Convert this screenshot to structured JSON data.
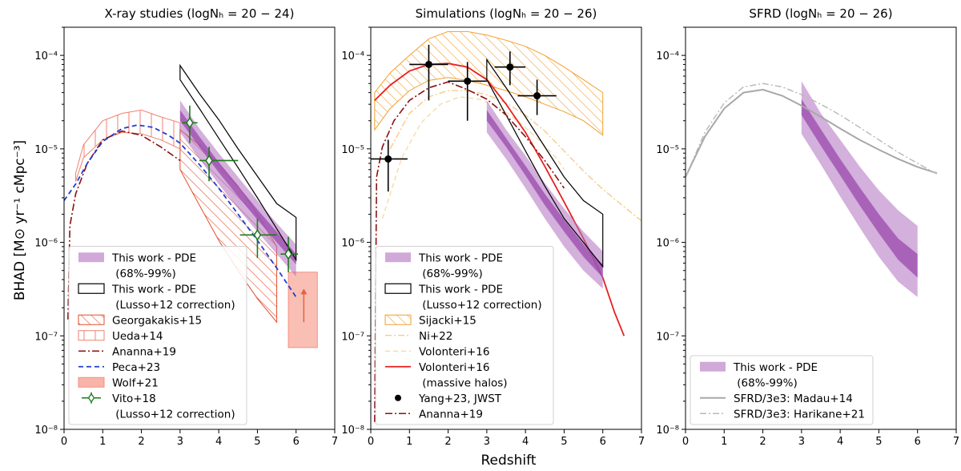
{
  "chart_data": {
    "type": "line",
    "xlabel": "Redshift",
    "ylabel": "BHAD  [M⊙ yr⁻¹ cMpc⁻³]",
    "xlim": [
      0,
      7
    ],
    "ylim": [
      1e-08,
      0.0002
    ],
    "yscale": "log",
    "xticks": [
      "0",
      "1",
      "2",
      "3",
      "4",
      "5",
      "6",
      "7"
    ],
    "yticks": [
      {
        "value": 1e-08,
        "label": "10⁻⁸"
      },
      {
        "value": 1e-07,
        "label": "10⁻⁷"
      },
      {
        "value": 1e-06,
        "label": "10⁻⁶"
      },
      {
        "value": 1e-05,
        "label": "10⁻⁵"
      },
      {
        "value": 0.0001,
        "label": "10⁻⁴"
      }
    ],
    "panels": [
      {
        "title": "X-ray studies (logNₕ = 20 − 24)",
        "series": [
          {
            "name": "Ueda+14",
            "kind": "hatched-band",
            "color": "#f08070",
            "x": [
              0.3,
              0.5,
              1.0,
              1.5,
              2.0,
              2.5,
              3.0
            ],
            "lower": [
              4.5e-06,
              8e-06,
              1.25e-05,
              1.5e-05,
              1.45e-05,
              1.25e-05,
              1e-05
            ],
            "upper": [
              5.5e-06,
              1.1e-05,
              2e-05,
              2.4e-05,
              2.6e-05,
              2.2e-05,
              1.9e-05
            ]
          },
          {
            "name": "Georgakakis+15",
            "kind": "diag-hatched-band",
            "color": "#e05030",
            "x": [
              3.0,
              3.5,
              4.0,
              4.5,
              5.0,
              5.5
            ],
            "lower": [
              6e-06,
              2.5e-06,
              1.05e-06,
              5e-07,
              2.5e-07,
              1.4e-07
            ],
            "upper": [
              1.6e-05,
              1.1e-05,
              7e-06,
              4e-06,
              2e-06,
              9e-07
            ]
          },
          {
            "name": "Wolf+21",
            "kind": "box",
            "color": "#f8b4a8",
            "x0": 5.8,
            "x1": 6.55,
            "y0": 7.5e-08,
            "y1": 4.8e-07,
            "arrow_x": 6.2,
            "arrow_y0": 1.4e-07,
            "arrow_y1": 3.2e-07
          },
          {
            "name": "This work - PDE (68%-99%)",
            "kind": "band",
            "color": "#b070c0",
            "x": [
              3.0,
              3.5,
              4.0,
              4.5,
              5.0,
              5.5,
              6.0
            ],
            "lower99": [
              1.5e-05,
              7.8e-06,
              4.2e-06,
              2.3e-06,
              1.3e-06,
              7.5e-07,
              4.3e-07
            ],
            "upper99": [
              3.3e-05,
              1.65e-05,
              9e-06,
              5e-06,
              2.8e-06,
              1.6e-06,
              9.5e-07
            ],
            "lower68": [
              2e-05,
              1.05e-05,
              5.6e-06,
              3.1e-06,
              1.75e-06,
              1e-06,
              5.8e-07
            ],
            "upper68": [
              2.6e-05,
              1.35e-05,
              7.2e-06,
              4e-06,
              2.25e-06,
              1.3e-06,
              7.5e-07
            ]
          },
          {
            "name": "This work - PDE (Lusso+12 correction)",
            "kind": "outline",
            "color": "#000000",
            "x": [
              3.0,
              3.5,
              4.0,
              4.5,
              5.0,
              5.5,
              6.0
            ],
            "lower": [
              5.5e-05,
              2.7e-05,
              1.3e-05,
              6.3e-06,
              3e-06,
              1.4e-06,
              6.5e-07
            ],
            "upper": [
              7.8e-05,
              3.9e-05,
              2.05e-05,
              1e-05,
              5.1e-06,
              2.6e-06,
              1.85e-06
            ]
          },
          {
            "name": "Ananna+19",
            "kind": "dashdot",
            "color": "#8b1010",
            "x": [
              0.1,
              0.15,
              0.3,
              0.6,
              1.0,
              1.5,
              2.0,
              2.5,
              3.0
            ],
            "y": [
              1.5e-07,
              1.5e-06,
              3.3e-06,
              7e-06,
              1.25e-05,
              1.55e-05,
              1.4e-05,
              1.05e-05,
              7.5e-06
            ]
          },
          {
            "name": "Peca+23",
            "kind": "dashed",
            "color": "#1f3fd0",
            "x": [
              0,
              0.3,
              0.6,
              1.0,
              1.5,
              1.9,
              2.3,
              2.7,
              3.0,
              3.5,
              4.0,
              4.5,
              5.0,
              5.5,
              6.0
            ],
            "y": [
              2.8e-06,
              4.2e-06,
              7e-06,
              1.2e-05,
              1.65e-05,
              1.8e-05,
              1.7e-05,
              1.4e-05,
              1.15e-05,
              6.8e-06,
              3.8e-06,
              2e-06,
              1.05e-06,
              5.3e-07,
              2.6e-07
            ]
          },
          {
            "name": "Vito+18 (Lusso+12 correction)",
            "kind": "errorbar",
            "color": "#1a7a1a",
            "points": [
              {
                "x": 3.25,
                "y": 1.9e-05,
                "xlo": 3.05,
                "xhi": 3.45,
                "ylo": 1.15e-05,
                "yhi": 2.9e-05
              },
              {
                "x": 3.75,
                "y": 7.5e-06,
                "xlo": 3.5,
                "xhi": 4.5,
                "ylo": 4.5e-06,
                "yhi": 1.05e-05
              },
              {
                "x": 5.0,
                "y": 1.2e-06,
                "xlo": 4.55,
                "xhi": 5.5,
                "ylo": 6.8e-07,
                "yhi": 1.8e-06
              },
              {
                "x": 5.8,
                "y": 7.5e-07,
                "xlo": 5.6,
                "xhi": 6.05,
                "ylo": 4.8e-07,
                "yhi": 1.15e-06
              }
            ]
          }
        ],
        "legend": [
          {
            "kind": "band",
            "text": [
              "This work - PDE",
              " (68%-99%)"
            ]
          },
          {
            "kind": "outline",
            "text": [
              "This work - PDE",
              " (Lusso+12 correction)"
            ]
          },
          {
            "kind": "diag-hatched-band",
            "text": [
              "Georgakakis+15"
            ]
          },
          {
            "kind": "hatched-band",
            "text": [
              "Ueda+14"
            ]
          },
          {
            "kind": "dashdot",
            "text": [
              "Ananna+19"
            ]
          },
          {
            "kind": "dashed",
            "text": [
              "Peca+23"
            ]
          },
          {
            "kind": "box",
            "text": [
              "Wolf+21"
            ]
          },
          {
            "kind": "errorbar",
            "text": [
              "Vito+18",
              " (Lusso+12 correction)"
            ]
          }
        ]
      },
      {
        "title": "Simulations (logNₕ = 20 − 26)",
        "series": [
          {
            "name": "Sijacki+15",
            "kind": "orange-hatched-band",
            "color": "#f0a030",
            "x": [
              0.1,
              0.5,
              1.0,
              1.5,
              2.0,
              2.5,
              3.0,
              3.5,
              4.0,
              4.5,
              5.0,
              5.5,
              6.0
            ],
            "lower": [
              1.6e-05,
              2.7e-05,
              4.2e-05,
              5.4e-05,
              5.8e-05,
              5.4e-05,
              4.8e-05,
              4.2e-05,
              3.6e-05,
              3e-05,
              2.5e-05,
              2e-05,
              1.4e-05
            ],
            "upper": [
              4e-05,
              6.5e-05,
              0.0001,
              0.00015,
              0.00018,
              0.00018,
              0.000165,
              0.000145,
              0.000125,
              0.0001,
              7.5e-05,
              5.5e-05,
              4e-05
            ]
          },
          {
            "name": "Ni+22",
            "kind": "dashdot-light",
            "color": "#f5c880",
            "x": [
              0.5,
              1.0,
              1.5,
              2.0,
              2.5,
              3.0,
              3.5,
              4.0,
              4.5,
              5.0,
              5.5,
              6.0,
              6.5,
              7.0
            ],
            "y": [
              1e-05,
              2.4e-05,
              3.6e-05,
              4.2e-05,
              4.2e-05,
              3.8e-05,
              3.1e-05,
              2.3e-05,
              1.55e-05,
              9.5e-06,
              5.8e-06,
              3.7e-06,
              2.5e-06,
              1.7e-06
            ]
          },
          {
            "name": "Volonteri+16",
            "kind": "dashed-light",
            "color": "#f8d8a0",
            "x": [
              0.3,
              0.8,
              1.3,
              1.8,
              2.3,
              2.8,
              3.3,
              3.8,
              4.3,
              4.8,
              5.0
            ],
            "y": [
              1.8e-06,
              8e-06,
              1.9e-05,
              3e-05,
              3.6e-05,
              3.4e-05,
              2.8e-05,
              2e-05,
              1.3e-05,
              8e-06,
              6e-06
            ]
          },
          {
            "name": "Volonteri+16 (massive halos)",
            "kind": "solid",
            "color": "#e82020",
            "x": [
              0.1,
              0.5,
              1.0,
              1.5,
              2.0,
              2.5,
              3.0,
              3.5,
              4.0,
              4.5,
              5.0,
              5.5,
              6.0,
              6.3,
              6.55
            ],
            "y": [
              3.3e-05,
              4.8e-05,
              6.8e-05,
              8e-05,
              8.2e-05,
              7.5e-05,
              5.5e-05,
              3e-05,
              1.5e-05,
              6.5e-06,
              2.7e-06,
              1.1e-06,
              4.2e-07,
              1.8e-07,
              1e-07
            ]
          },
          {
            "name": "This work - PDE (68%-99%)",
            "kind": "band",
            "color": "#b070c0",
            "x": [
              3.0,
              3.5,
              4.0,
              4.5,
              5.0,
              5.5,
              6.0
            ],
            "lower99": [
              1.5e-05,
              7.8e-06,
              3.8e-06,
              1.8e-06,
              9e-07,
              5e-07,
              3.2e-07
            ],
            "upper99": [
              3.3e-05,
              1.6e-05,
              8.5e-06,
              4.3e-06,
              2.3e-06,
              1.3e-06,
              8e-07
            ],
            "lower68": [
              2e-05,
              1.05e-05,
              5.2e-06,
              2.5e-06,
              1.3e-06,
              7e-07,
              4.2e-07
            ],
            "upper68": [
              2.6e-05,
              1.3e-05,
              6.6e-06,
              3.3e-06,
              1.75e-06,
              9.5e-07,
              5.8e-07
            ]
          },
          {
            "name": "This work - PDE (Lusso+12 correction)",
            "kind": "outline",
            "color": "#000000",
            "x": [
              3.0,
              3.5,
              4.0,
              4.5,
              5.0,
              5.5,
              6.0
            ],
            "lower": [
              5.5e-05,
              2.3e-05,
              9.5e-06,
              4e-06,
              1.8e-06,
              1e-06,
              5.5e-07
            ],
            "upper": [
              9e-05,
              4.5e-05,
              2.2e-05,
              1.05e-05,
              5e-06,
              2.8e-06,
              2e-06
            ]
          },
          {
            "name": "Ananna+19",
            "kind": "dashdot",
            "color": "#8b1010",
            "x": [
              0.1,
              0.15,
              0.3,
              0.6,
              1.0,
              1.5,
              2.0,
              2.5,
              3.0,
              3.5,
              4.0,
              4.5,
              5.0
            ],
            "y": [
              1.2e-08,
              5e-06,
              1.05e-05,
              2e-05,
              3.3e-05,
              4.5e-05,
              5.2e-05,
              4.3e-05,
              3.4e-05,
              2.3e-05,
              1.35e-05,
              7.5e-06,
              3.8e-06
            ]
          },
          {
            "name": "Yang+23, JWST",
            "kind": "errorbar",
            "color": "#000000",
            "points": [
              {
                "x": 0.45,
                "y": 7.8e-06,
                "xlo": 0.0,
                "xhi": 0.95,
                "ylo": 3.5e-06,
                "yhi": 1.25e-05
              },
              {
                "x": 1.5,
                "y": 8e-05,
                "xlo": 1.0,
                "xhi": 2.0,
                "ylo": 3.3e-05,
                "yhi": 0.00013
              },
              {
                "x": 2.5,
                "y": 5.3e-05,
                "xlo": 2.0,
                "xhi": 3.0,
                "ylo": 2e-05,
                "yhi": 8.5e-05
              },
              {
                "x": 3.6,
                "y": 7.5e-05,
                "xlo": 3.2,
                "xhi": 4.0,
                "ylo": 4.8e-05,
                "yhi": 0.00011
              },
              {
                "x": 4.3,
                "y": 3.7e-05,
                "xlo": 3.8,
                "xhi": 4.8,
                "ylo": 2.3e-05,
                "yhi": 5.5e-05
              }
            ]
          }
        ],
        "legend": [
          {
            "kind": "band",
            "text": [
              "This work - PDE",
              " (68%-99%)"
            ]
          },
          {
            "kind": "outline",
            "text": [
              "This work - PDE",
              " (Lusso+12 correction)"
            ]
          },
          {
            "kind": "orange-hatched-band",
            "text": [
              "Sijacki+15"
            ]
          },
          {
            "kind": "dashdot-light",
            "text": [
              "Ni+22"
            ]
          },
          {
            "kind": "dashed-light",
            "text": [
              "Volonteri+16"
            ]
          },
          {
            "kind": "solid",
            "text": [
              "Volonteri+16",
              " (massive halos)"
            ]
          },
          {
            "kind": "dot",
            "text": [
              "Yang+23, JWST"
            ]
          },
          {
            "kind": "dashdot",
            "text": [
              "Ananna+19"
            ]
          }
        ]
      },
      {
        "title": "SFRD (logNₕ = 20 − 26)",
        "series": [
          {
            "name": "This work - PDE (68%-99%)",
            "kind": "band",
            "color": "#b070c0",
            "x": [
              3.0,
              3.5,
              4.0,
              4.5,
              5.0,
              5.5,
              6.0
            ],
            "lower99": [
              1.45e-05,
              6.8e-06,
              3.1e-06,
              1.45e-06,
              7e-07,
              3.8e-07,
              2.6e-07
            ],
            "upper99": [
              5.3e-05,
              2.4e-05,
              1.25e-05,
              6.5e-06,
              3.6e-06,
              2.2e-06,
              1.5e-06
            ],
            "lower68": [
              2.3e-05,
              1.08e-05,
              5.2e-06,
              2.5e-06,
              1.25e-06,
              6.5e-07,
              4.2e-07
            ],
            "upper68": [
              3.4e-05,
              1.62e-05,
              7.8e-06,
              3.9e-06,
              2e-06,
              1.1e-06,
              7.5e-07
            ]
          },
          {
            "name": "SFRD/3e3: Madau+14",
            "kind": "solid-gray",
            "color": "#a8a8a8",
            "x": [
              0,
              0.5,
              1.0,
              1.5,
              2.0,
              2.5,
              3.0,
              3.5,
              4.0,
              4.5,
              5.0,
              5.5,
              6.0,
              6.5
            ],
            "y": [
              5e-06,
              1.35e-05,
              2.7e-05,
              4e-05,
              4.3e-05,
              3.7e-05,
              2.9e-05,
              2.2e-05,
              1.65e-05,
              1.25e-05,
              9.8e-06,
              7.8e-06,
              6.4e-06,
              5.5e-06
            ]
          },
          {
            "name": "SFRD/3e3: Harikane+21",
            "kind": "dashdot-gray",
            "color": "#b8b8b8",
            "x": [
              0,
              0.5,
              1.0,
              1.5,
              2.0,
              2.5,
              3.0,
              3.5,
              4.0,
              4.5,
              5.0,
              5.5,
              6.0,
              6.5
            ],
            "y": [
              5e-06,
              1.5e-05,
              3.1e-05,
              4.6e-05,
              5e-05,
              4.6e-05,
              3.8e-05,
              3e-05,
              2.3e-05,
              1.7e-05,
              1.25e-05,
              9.2e-06,
              7e-06,
              5.4e-06
            ]
          }
        ],
        "legend": [
          {
            "kind": "band",
            "text": [
              "This work - PDE",
              " (68%-99%)"
            ]
          },
          {
            "kind": "solid-gray",
            "text": [
              "SFRD/3e3: Madau+14"
            ]
          },
          {
            "kind": "dashdot-gray",
            "text": [
              "SFRD/3e3: Harikane+21"
            ]
          }
        ]
      }
    ]
  }
}
